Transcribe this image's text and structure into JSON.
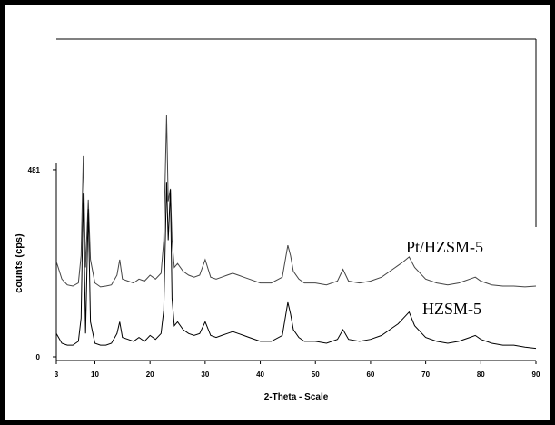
{
  "chart_data": {
    "type": "line",
    "xlabel": "2-Theta - Scale",
    "ylabel": "counts (cps)",
    "xlim": [
      3,
      90
    ],
    "xticks": [
      3,
      10,
      20,
      30,
      40,
      50,
      60,
      70,
      80,
      90
    ],
    "ylim": [
      0,
      817
    ],
    "yticks": [
      0,
      481
    ],
    "x": [
      3,
      4,
      5,
      6,
      7,
      7.5,
      7.9,
      8.3,
      8.8,
      9.2,
      10,
      11,
      12,
      13,
      14,
      14.5,
      15,
      16,
      17,
      18,
      19,
      20,
      21,
      22,
      22.5,
      23,
      23.3,
      23.7,
      24,
      24.4,
      25,
      26,
      27,
      28,
      29,
      30,
      31,
      32,
      33,
      34,
      35,
      36,
      37,
      38,
      40,
      42,
      44,
      45,
      45.5,
      46,
      47,
      48,
      50,
      52,
      54,
      55,
      56,
      58,
      60,
      62,
      64,
      65,
      66,
      67,
      68,
      70,
      72,
      74,
      76,
      78,
      79,
      80,
      82,
      84,
      86,
      88,
      90
    ],
    "series": [
      {
        "name": "Pt/HZSM-5",
        "color": "#444444",
        "values": [
          245,
          200,
          185,
          182,
          190,
          260,
          516,
          230,
          404,
          250,
          190,
          180,
          182,
          185,
          210,
          250,
          200,
          195,
          190,
          200,
          195,
          210,
          200,
          215,
          300,
          621,
          400,
          432,
          300,
          230,
          240,
          220,
          210,
          205,
          210,
          250,
          205,
          200,
          205,
          210,
          215,
          210,
          205,
          200,
          190,
          190,
          205,
          287,
          260,
          220,
          200,
          190,
          190,
          185,
          195,
          225,
          195,
          190,
          195,
          205,
          225,
          235,
          245,
          257,
          230,
          200,
          190,
          185,
          190,
          200,
          205,
          195,
          185,
          182,
          182,
          180,
          182
        ]
      },
      {
        "name": "HZSM-5",
        "color": "#000000",
        "values": [
          60,
          35,
          30,
          30,
          40,
          100,
          420,
          60,
          380,
          90,
          35,
          30,
          30,
          35,
          60,
          90,
          50,
          45,
          40,
          50,
          40,
          55,
          45,
          60,
          120,
          450,
          300,
          430,
          150,
          80,
          90,
          70,
          60,
          55,
          60,
          90,
          55,
          50,
          55,
          60,
          65,
          60,
          55,
          50,
          40,
          40,
          55,
          140,
          110,
          70,
          50,
          40,
          40,
          35,
          45,
          70,
          45,
          40,
          45,
          55,
          75,
          85,
          100,
          115,
          80,
          50,
          40,
          35,
          40,
          50,
          55,
          45,
          35,
          30,
          30,
          25,
          22
        ]
      }
    ]
  }
}
